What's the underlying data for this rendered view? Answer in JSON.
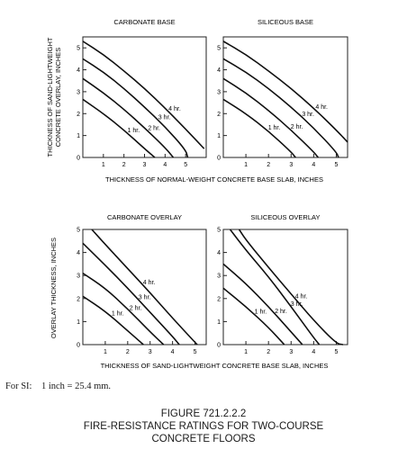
{
  "chart_data": [
    {
      "type": "line",
      "title": "CARBONATE BASE",
      "xlim": [
        0,
        6
      ],
      "ylim": [
        0,
        5.5
      ],
      "xticks": [
        1,
        2,
        3,
        4,
        5
      ],
      "yticks": [
        0,
        1,
        2,
        3,
        4,
        5
      ],
      "series": [
        {
          "name": "1 hr.",
          "x": [
            0,
            1,
            2,
            3,
            3.5
          ],
          "y": [
            2.65,
            2.0,
            1.25,
            0.4,
            0
          ]
        },
        {
          "name": "2 hr.",
          "x": [
            0,
            1,
            2,
            3,
            4,
            4.4
          ],
          "y": [
            3.6,
            2.95,
            2.2,
            1.35,
            0.45,
            0
          ]
        },
        {
          "name": "3 hr.",
          "x": [
            0,
            1,
            2,
            3,
            4,
            5,
            5.1
          ],
          "y": [
            4.5,
            3.9,
            3.15,
            2.3,
            1.4,
            0.35,
            0
          ]
        },
        {
          "name": "4 hr.",
          "x": [
            0,
            1,
            2,
            3,
            4,
            5,
            5.9
          ],
          "y": [
            5.3,
            4.7,
            3.95,
            3.15,
            2.25,
            1.3,
            0.4
          ]
        }
      ]
    },
    {
      "type": "line",
      "title": "SILICEOUS BASE",
      "xlim": [
        0,
        5.5
      ],
      "ylim": [
        0,
        5.5
      ],
      "xticks": [
        1,
        2,
        3,
        4,
        5
      ],
      "yticks": [
        0,
        1,
        2,
        3,
        4,
        5
      ],
      "series": [
        {
          "name": "1 hr.",
          "x": [
            0,
            1,
            2,
            3,
            3.2
          ],
          "y": [
            2.65,
            2.0,
            1.2,
            0.25,
            0
          ]
        },
        {
          "name": "2 hr.",
          "x": [
            0,
            1,
            2,
            3,
            4,
            4.2
          ],
          "y": [
            3.6,
            2.95,
            2.15,
            1.25,
            0.25,
            0
          ]
        },
        {
          "name": "3 hr.",
          "x": [
            0,
            1,
            2,
            3,
            4,
            5,
            5.1
          ],
          "y": [
            4.5,
            3.9,
            3.15,
            2.3,
            1.35,
            0.25,
            0
          ]
        },
        {
          "name": "4 hr.",
          "x": [
            0,
            1,
            2,
            3,
            4,
            5,
            5.5
          ],
          "y": [
            5.3,
            4.7,
            3.95,
            3.15,
            2.25,
            1.25,
            0.7
          ]
        }
      ]
    },
    {
      "type": "line",
      "title": "CARBONATE OVERLAY",
      "xlim": [
        0,
        5.5
      ],
      "ylim": [
        0,
        5
      ],
      "xticks": [
        1,
        2,
        3,
        4,
        5
      ],
      "yticks": [
        0,
        1,
        2,
        3,
        4,
        5
      ],
      "series": [
        {
          "name": "1 hr.",
          "x": [
            0,
            1,
            2,
            2.7
          ],
          "y": [
            2.1,
            1.45,
            0.6,
            0
          ]
        },
        {
          "name": "2 hr.",
          "x": [
            0,
            1,
            2,
            3,
            3.6
          ],
          "y": [
            3.1,
            2.45,
            1.55,
            0.55,
            0
          ]
        },
        {
          "name": "3 hr.",
          "x": [
            0,
            1,
            2,
            3,
            4,
            4.3
          ],
          "y": [
            4.4,
            3.45,
            2.45,
            1.4,
            0.35,
            0
          ]
        },
        {
          "name": "4 hr.",
          "x": [
            0.4,
            1,
            2,
            3,
            4,
            5,
            5.1
          ],
          "y": [
            5.0,
            4.35,
            3.3,
            2.25,
            1.15,
            0.1,
            0
          ]
        }
      ]
    },
    {
      "type": "line",
      "title": "SILICEOUS OVERLAY",
      "xlim": [
        0,
        5.5
      ],
      "ylim": [
        0,
        5
      ],
      "xticks": [
        1,
        2,
        3,
        4,
        5
      ],
      "yticks": [
        0,
        1,
        2,
        3,
        4,
        5
      ],
      "series": [
        {
          "name": "1 hr.",
          "x": [
            0,
            1,
            2,
            2.7
          ],
          "y": [
            2.45,
            1.65,
            0.75,
            0
          ]
        },
        {
          "name": "2 hr.",
          "x": [
            0,
            1,
            2,
            3,
            3.5
          ],
          "y": [
            3.5,
            2.65,
            1.65,
            0.55,
            0
          ]
        },
        {
          "name": "3 hr.",
          "x": [
            0.3,
            1,
            2,
            3,
            4,
            4.25
          ],
          "y": [
            5.0,
            4.1,
            2.95,
            1.65,
            0.3,
            0
          ]
        },
        {
          "name": "4 hr.",
          "x": [
            0.7,
            1,
            2,
            3,
            4,
            5,
            5.3
          ],
          "y": [
            5.0,
            4.55,
            3.35,
            2.2,
            1.05,
            0.05,
            0
          ]
        }
      ]
    }
  ],
  "labels": {
    "y_label_top_line1": "THICKNESS OF SAND-LIGHTWEIGHT",
    "y_label_top_line2": "CONCRETE OVERLAY, INCHES",
    "x_label_top": "THICKNESS OF NORMAL-WEIGHT CONCRETE BASE SLAB, INCHES",
    "y_label_bottom": "OVERLAY THICKNESS, INCHES",
    "x_label_bottom": "THICKNESS OF SAND-LIGHTWEIGHT CONCRETE BASE SLAB, INCHES"
  },
  "note": "For SI:    1 inch = 25.4 mm.",
  "caption": {
    "number": "FIGURE 721.2.2.2",
    "title_line1": "FIRE-RESISTANCE RATINGS FOR TWO-COURSE",
    "title_line2": "CONCRETE FLOORS"
  }
}
